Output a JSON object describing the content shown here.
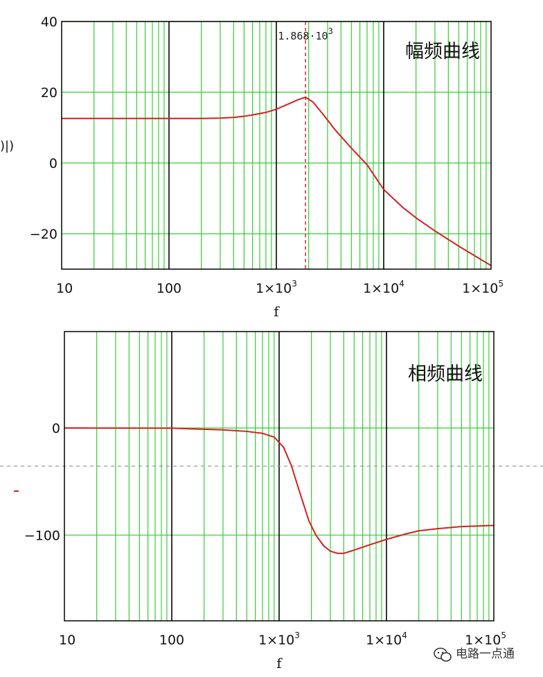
{
  "chart_data": [
    {
      "type": "line",
      "title": "幅频曲线",
      "xlabel": "f",
      "ylabel_partial": ")|)",
      "x_scale": "log",
      "xlim": [
        10,
        100000
      ],
      "ylim": [
        -30,
        40
      ],
      "x_tick_labels": [
        {
          "value": 10,
          "base": "10",
          "exp": ""
        },
        {
          "value": 100,
          "base": "100",
          "exp": ""
        },
        {
          "value": 1000,
          "base": "1×10",
          "exp": "3"
        },
        {
          "value": 10000,
          "base": "1×10",
          "exp": "4"
        },
        {
          "value": 100000,
          "base": "1×10",
          "exp": "5"
        }
      ],
      "y_ticks": [
        40,
        20,
        0,
        -20
      ],
      "y_tick_labels": [
        "40",
        "20",
        "0",
        "−20"
      ],
      "grid": true,
      "marker_line": {
        "x": 1868,
        "label": "1.868·10",
        "label_exp": "3"
      },
      "series": [
        {
          "color": "#d42020",
          "x": [
            10,
            50,
            100,
            200,
            300,
            400,
            500,
            600,
            800,
            1000,
            1300,
            1600,
            1868,
            2200,
            2800,
            3500,
            5000,
            7000,
            10000,
            15000,
            20000,
            30000,
            50000,
            100000
          ],
          "y": [
            12.6,
            12.6,
            12.6,
            12.6,
            12.7,
            12.9,
            13.2,
            13.6,
            14.3,
            15.2,
            16.7,
            17.9,
            18.6,
            17.2,
            13.3,
            9.5,
            4.2,
            -0.5,
            -7.5,
            -12.5,
            -15.5,
            -19.2,
            -23.5,
            -29.0
          ]
        }
      ]
    },
    {
      "type": "line",
      "title": "相频曲线",
      "xlabel": "f",
      "x_scale": "log",
      "xlim": [
        10,
        100000
      ],
      "ylim": [
        -180,
        90
      ],
      "x_tick_labels": [
        {
          "value": 10,
          "base": "10",
          "exp": ""
        },
        {
          "value": 100,
          "base": "100",
          "exp": ""
        },
        {
          "value": 1000,
          "base": "1×10",
          "exp": "3"
        },
        {
          "value": 10000,
          "base": "1×10",
          "exp": "4"
        },
        {
          "value": 100000,
          "base": "1×10",
          "exp": "5"
        }
      ],
      "y_ticks": [
        0,
        -100
      ],
      "y_tick_labels": [
        "0",
        "−100"
      ],
      "grid": true,
      "series": [
        {
          "color": "#d42020",
          "x": [
            10,
            100,
            150,
            200,
            300,
            400,
            500,
            700,
            900,
            1100,
            1300,
            1500,
            1700,
            1900,
            2200,
            2600,
            3000,
            3500,
            4000,
            5000,
            7000,
            10000,
            15000,
            20000,
            30000,
            50000,
            100000
          ],
          "y": [
            0,
            -0.2,
            -0.8,
            -1.2,
            -1.8,
            -2.5,
            -3.2,
            -5.0,
            -8.5,
            -18,
            -35,
            -55,
            -72,
            -87,
            -100,
            -110,
            -115,
            -117,
            -117,
            -114,
            -109,
            -104,
            -99,
            -96,
            -94,
            -92,
            -91
          ]
        }
      ]
    }
  ],
  "watermark": {
    "text": "电路一点通",
    "icon": "wechat-icon"
  },
  "colors": {
    "grid_minor": "#33cc33",
    "grid_major": "#000000",
    "curve": "#d42020",
    "marker": "#e03030",
    "frame": "#000000"
  }
}
